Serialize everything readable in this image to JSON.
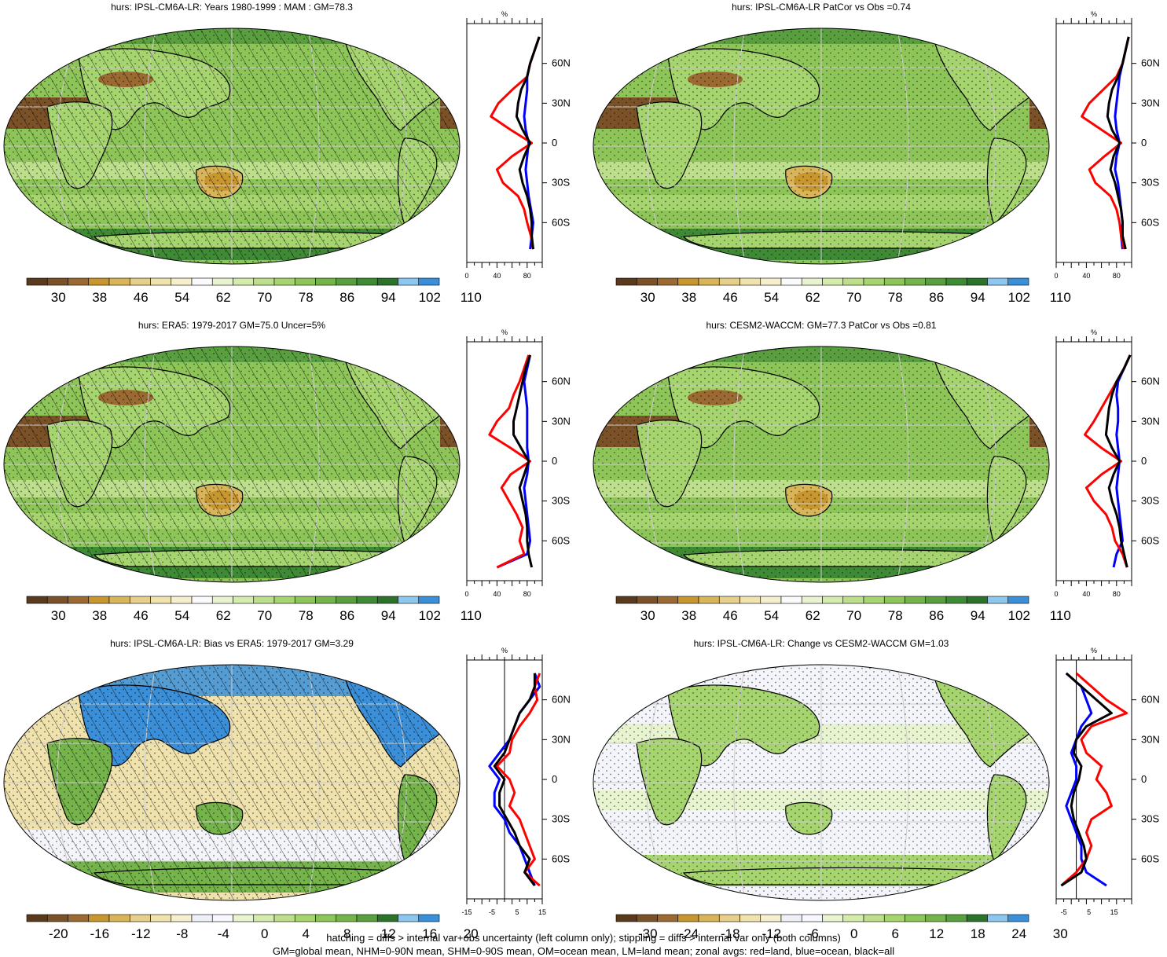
{
  "panels": [
    {
      "id": "p1",
      "title": "hurs: IPSL-CM6A-LR: Years 1980-1999 : MAM : GM=78.3",
      "map_style": "model",
      "profile_xticks": [
        "0",
        "40",
        "80"
      ],
      "profile_unit": "%",
      "colorbar_labels": [
        "30",
        "38",
        "46",
        "54",
        "62",
        "70",
        "78",
        "86",
        "94",
        "102",
        "110"
      ],
      "colorbar": "abs"
    },
    {
      "id": "p2",
      "title": "hurs: IPSL-CM6A-LR PatCor vs Obs =0.74",
      "map_style": "model",
      "profile_xticks": [
        "0",
        "40",
        "80"
      ],
      "profile_unit": "%",
      "colorbar_labels": [
        "30",
        "38",
        "46",
        "54",
        "62",
        "70",
        "78",
        "86",
        "94",
        "102",
        "110"
      ],
      "colorbar": "abs"
    },
    {
      "id": "p3",
      "title": "hurs: ERA5: 1979-2017 GM=75.0 Uncer=5%",
      "map_style": "obs",
      "profile_xticks": [
        "0",
        "40",
        "80"
      ],
      "profile_unit": "%",
      "colorbar_labels": [
        "30",
        "38",
        "46",
        "54",
        "62",
        "70",
        "78",
        "86",
        "94",
        "102",
        "110"
      ],
      "colorbar": "abs"
    },
    {
      "id": "p4",
      "title": "hurs: CESM2-WACCM: GM=77.3 PatCor vs Obs =0.81",
      "map_style": "model",
      "profile_xticks": [
        "0",
        "40",
        "80"
      ],
      "profile_unit": "%",
      "colorbar_labels": [
        "30",
        "38",
        "46",
        "54",
        "62",
        "70",
        "78",
        "86",
        "94",
        "102",
        "110"
      ],
      "colorbar": "abs"
    },
    {
      "id": "p5",
      "title": "hurs: IPSL-CM6A-LR: Bias vs ERA5: 1979-2017 GM=3.29",
      "map_style": "bias",
      "profile_xticks": [
        "-15",
        "-5",
        "5",
        "15"
      ],
      "profile_unit": "%",
      "colorbar_labels": [
        "-20",
        "-16",
        "-12",
        "-8",
        "-4",
        "0",
        "4",
        "8",
        "12",
        "16",
        "20"
      ],
      "colorbar": "diff"
    },
    {
      "id": "p6",
      "title": "hurs: IPSL-CM6A-LR: Change vs CESM2-WACCM GM=1.03",
      "map_style": "change",
      "profile_xticks": [
        "-5",
        "5",
        "15"
      ],
      "profile_unit": "%",
      "colorbar_labels": [
        "-30",
        "-24",
        "-18",
        "-12",
        "-6",
        "0",
        "6",
        "12",
        "18",
        "24",
        "30"
      ],
      "colorbar": "diff"
    }
  ],
  "lat_labels": [
    "60N",
    "30N",
    "0",
    "30S",
    "60S"
  ],
  "colors": {
    "abs_scale": [
      "#5a3a1c",
      "#7b5228",
      "#9a6a32",
      "#c8962e",
      "#d9b55a",
      "#e6cf8a",
      "#efe2ad",
      "#f5efcd",
      "#fafafa",
      "#e8f4cf",
      "#d3ebab",
      "#bddf8c",
      "#a6d46f",
      "#8ec558",
      "#74b44b",
      "#5a9f3f",
      "#3f8a35",
      "#2b722b",
      "#8cc7ef",
      "#3a8fd8"
    ],
    "diff_scale": [
      "#5a3a1c",
      "#7b5228",
      "#9a6a32",
      "#c8962e",
      "#d9b55a",
      "#e6cf8a",
      "#efe2ad",
      "#f5efcd",
      "#eef0f8",
      "#f7f7ff",
      "#e8f4cf",
      "#d3ebab",
      "#bddf8c",
      "#a6d46f",
      "#8ec558",
      "#74b44b",
      "#5a9f3f",
      "#2b722b",
      "#8cc7ef",
      "#3a8fd8"
    ],
    "land_line": "#ff0000",
    "ocean_line": "#0000ff",
    "all_line": "#000000"
  },
  "chart_data": [
    {
      "type": "line",
      "title": "hurs: IPSL-CM6A-LR: Years 1980-1999 : MAM : GM=78.3",
      "xlabel": "%",
      "xlim": [
        0,
        100
      ],
      "ylim": [
        -90,
        90
      ],
      "y": [
        80,
        70,
        60,
        50,
        40,
        30,
        20,
        10,
        0,
        -10,
        -20,
        -30,
        -40,
        -50,
        -60,
        -70,
        -80
      ],
      "series": [
        {
          "values": [
            96,
            90,
            84,
            80,
            60,
            42,
            32,
            58,
            86,
            60,
            40,
            48,
            68,
            76,
            80,
            85,
            88
          ]
        },
        {
          "values": [
            96,
            90,
            84,
            80,
            80,
            78,
            76,
            78,
            82,
            80,
            78,
            80,
            82,
            85,
            88,
            86,
            84
          ]
        },
        {
          "values": [
            96,
            90,
            84,
            80,
            72,
            68,
            66,
            74,
            84,
            76,
            70,
            74,
            80,
            84,
            86,
            86,
            88
          ]
        }
      ]
    },
    {
      "type": "line",
      "title": "hurs: IPSL-CM6A-LR PatCor vs Obs =0.74",
      "xlabel": "%",
      "xlim": [
        0,
        100
      ],
      "ylim": [
        -90,
        90
      ],
      "y": [
        80,
        70,
        60,
        50,
        40,
        30,
        20,
        10,
        0,
        -10,
        -20,
        -30,
        -40,
        -50,
        -60,
        -70,
        -80
      ],
      "series": [
        {
          "values": [
            96,
            92,
            88,
            80,
            62,
            44,
            34,
            60,
            86,
            64,
            44,
            52,
            72,
            80,
            84,
            86,
            90
          ]
        },
        {
          "values": [
            96,
            92,
            88,
            84,
            82,
            80,
            78,
            80,
            84,
            80,
            78,
            82,
            84,
            86,
            88,
            86,
            88
          ]
        },
        {
          "values": [
            96,
            92,
            88,
            82,
            74,
            70,
            68,
            74,
            84,
            76,
            72,
            78,
            82,
            86,
            88,
            88,
            92
          ]
        }
      ]
    },
    {
      "type": "line",
      "title": "hurs: ERA5: 1979-2017 GM=75.0 Uncer=5%",
      "xlabel": "%",
      "xlim": [
        0,
        100
      ],
      "ylim": [
        -90,
        90
      ],
      "y": [
        80,
        70,
        60,
        50,
        40,
        30,
        20,
        10,
        0,
        -10,
        -20,
        -30,
        -40,
        -50,
        -60,
        -70,
        -80
      ],
      "series": [
        {
          "values": [
            82,
            76,
            70,
            62,
            56,
            40,
            30,
            58,
            84,
            58,
            46,
            56,
            66,
            74,
            70,
            76,
            40
          ]
        },
        {
          "values": [
            84,
            80,
            76,
            78,
            80,
            80,
            80,
            80,
            82,
            80,
            76,
            78,
            80,
            82,
            84,
            80,
            40
          ]
        },
        {
          "values": [
            84,
            78,
            74,
            70,
            66,
            62,
            62,
            72,
            82,
            76,
            70,
            74,
            78,
            80,
            80,
            82,
            86
          ]
        }
      ]
    },
    {
      "type": "line",
      "title": "hurs: CESM2-WACCM: GM=77.3 PatCor vs Obs =0.81",
      "xlabel": "%",
      "xlim": [
        0,
        100
      ],
      "ylim": [
        -90,
        90
      ],
      "y": [
        80,
        70,
        60,
        50,
        40,
        30,
        20,
        10,
        0,
        -10,
        -20,
        -30,
        -40,
        -50,
        -60,
        -70,
        -80
      ],
      "series": [
        {
          "values": [
            98,
            90,
            80,
            70,
            60,
            50,
            38,
            60,
            86,
            60,
            40,
            50,
            66,
            74,
            78,
            88,
            94
          ]
        },
        {
          "values": [
            98,
            90,
            82,
            80,
            82,
            82,
            80,
            82,
            84,
            82,
            80,
            82,
            84,
            86,
            88,
            80,
            76
          ]
        },
        {
          "values": [
            98,
            90,
            80,
            74,
            70,
            68,
            66,
            74,
            84,
            76,
            70,
            74,
            80,
            84,
            86,
            90,
            94
          ]
        }
      ]
    },
    {
      "type": "line",
      "title": "hurs: IPSL-CM6A-LR: Bias vs ERA5: 1979-2017 GM=3.29",
      "xlabel": "%",
      "xlim": [
        -15,
        15
      ],
      "ylim": [
        -90,
        90
      ],
      "y": [
        80,
        70,
        60,
        50,
        40,
        30,
        20,
        10,
        0,
        -10,
        -20,
        -30,
        -40,
        -50,
        -60,
        -70,
        -80
      ],
      "series": [
        {
          "values": [
            14,
            12,
            13,
            10,
            6,
            3,
            2,
            -3,
            2,
            4,
            2,
            6,
            8,
            10,
            12,
            8,
            14
          ]
        },
        {
          "values": [
            12,
            14,
            10,
            6,
            4,
            2,
            -2,
            -6,
            -2,
            -4,
            -4,
            0,
            2,
            6,
            8,
            10,
            12
          ]
        },
        {
          "values": [
            12,
            12,
            10,
            6,
            4,
            2,
            0,
            -4,
            0,
            -2,
            -2,
            1,
            4,
            6,
            10,
            8,
            12
          ]
        }
      ]
    },
    {
      "type": "line",
      "title": "hurs: IPSL-CM6A-LR: Change vs CESM2-WACCM GM=1.03",
      "xlabel": "%",
      "xlim": [
        -8,
        22
      ],
      "ylim": [
        -90,
        90
      ],
      "y": [
        80,
        70,
        60,
        50,
        40,
        30,
        20,
        10,
        0,
        -10,
        -20,
        -30,
        -40,
        -50,
        -60,
        -70,
        -80
      ],
      "series": [
        {
          "values": [
            0,
            6,
            12,
            20,
            6,
            2,
            4,
            10,
            8,
            12,
            14,
            6,
            4,
            6,
            4,
            0,
            -6
          ]
        },
        {
          "values": [
            -4,
            2,
            4,
            6,
            2,
            0,
            -2,
            0,
            0,
            -2,
            -4,
            -2,
            0,
            2,
            2,
            4,
            12
          ]
        },
        {
          "values": [
            -4,
            2,
            8,
            14,
            4,
            0,
            -1,
            2,
            1,
            -1,
            -2,
            -1,
            1,
            3,
            4,
            2,
            -6
          ]
        }
      ]
    }
  ],
  "footer": {
    "line1": "hatching = diffs > internal var+obs uncertainty (left column only); stippling = diffs > internal var only (both columns)",
    "line2": "GM=global mean, NHM=0-90N mean, SHM=0-90S mean, OM=ocean mean, LM=land mean; zonal avgs: red=land, blue=ocean, black=all"
  }
}
